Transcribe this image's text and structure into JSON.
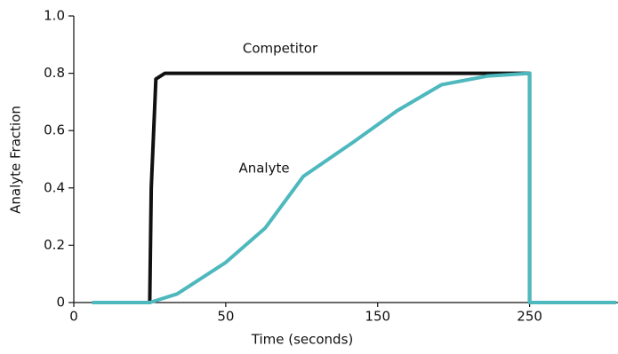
{
  "chart_data": {
    "type": "line",
    "x_label": "Time (seconds)",
    "y_label": "Analyte Fraction",
    "xlim": [
      0,
      307
    ],
    "xticks": [
      0,
      50,
      150,
      250
    ],
    "ylim": [
      0,
      1
    ],
    "yticks": [
      0,
      0.2,
      0.4,
      0.6,
      0.8,
      {
        "value": 1,
        "label": "1.0"
      }
    ],
    "series": [
      {
        "name": "Competitor",
        "color": "#111111",
        "x": [
          6,
          25,
          25.5,
          27,
          30,
          250,
          250,
          307
        ],
        "values": [
          0,
          0,
          0.4,
          0.78,
          0.8,
          0.8,
          0,
          0
        ]
      },
      {
        "name": "Analyte",
        "color": "#4db8bd",
        "x": [
          6,
          25,
          34,
          50,
          76,
          101,
          134,
          163,
          192,
          222,
          250,
          250,
          307
        ],
        "values": [
          0,
          0,
          0.03,
          0.14,
          0.26,
          0.44,
          0.56,
          0.67,
          0.76,
          0.79,
          0.8,
          0,
          0
        ]
      }
    ]
  }
}
